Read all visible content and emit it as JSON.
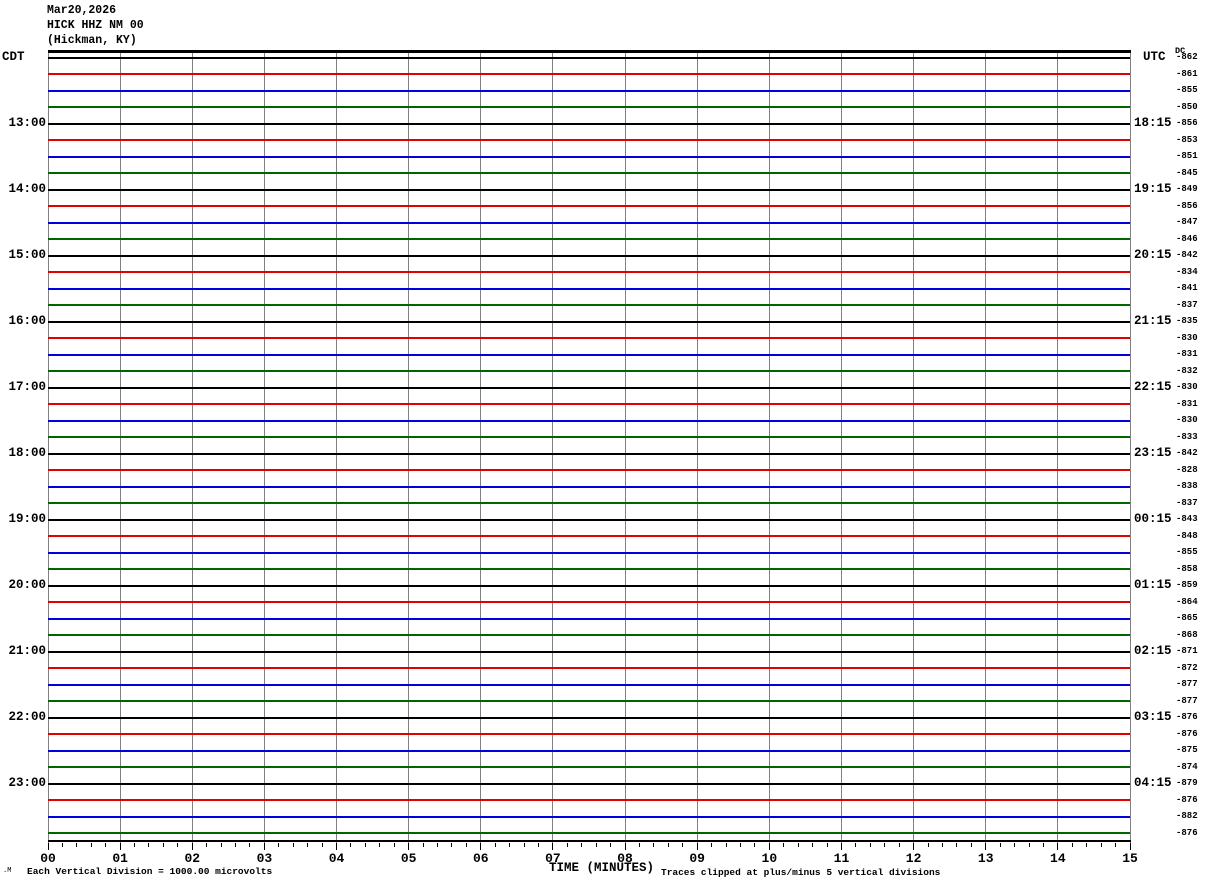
{
  "header": {
    "date": "Mar20,2026",
    "station": "HICK HHZ NM 00",
    "location": "(Hickman, KY)"
  },
  "left_axis": {
    "label": "CDT"
  },
  "right_axis": {
    "label": "UTC",
    "dc_label": "DC"
  },
  "x_axis": {
    "label": "TIME (MINUTES)",
    "ticks": [
      "00",
      "01",
      "02",
      "03",
      "04",
      "05",
      "06",
      "07",
      "08",
      "09",
      "10",
      "11",
      "12",
      "13",
      "14",
      "15"
    ],
    "minor_ticks_per_interval": 4
  },
  "footer": {
    "scale_note": "Each Vertical Division = 1000.00 microvolts",
    "clip_note": "Traces clipped at plus/minus 5 vertical divisions",
    "corner_mark": ".M"
  },
  "colors": {
    "trace_cycle": [
      "#000000",
      "#e00000",
      "#0000dd",
      "#006600"
    ],
    "grid": "#808080",
    "border": "#000000",
    "background": "#ffffff"
  },
  "chart_data": {
    "type": "line",
    "subtype": "helicorder-seismogram",
    "title": "HICK HHZ NM 00 (Hickman, KY) Mar20,2026",
    "xlabel": "TIME (MINUTES)",
    "x_range": [
      0,
      15
    ],
    "row_duration_minutes": 15,
    "rows_per_hour": 4,
    "amplitude_note": "all traces flat (no visible seismic activity)",
    "legend_position": "none",
    "grid": true,
    "rows": [
      {
        "cdt": "",
        "utc": "",
        "dc": "-862",
        "color": "black"
      },
      {
        "cdt": "",
        "utc": "",
        "dc": "-861",
        "color": "red"
      },
      {
        "cdt": "",
        "utc": "",
        "dc": "-855",
        "color": "blue"
      },
      {
        "cdt": "",
        "utc": "",
        "dc": "-850",
        "color": "green"
      },
      {
        "cdt": "13:00",
        "utc": "18:15",
        "dc": "-856",
        "color": "black"
      },
      {
        "cdt": "",
        "utc": "",
        "dc": "-853",
        "color": "red"
      },
      {
        "cdt": "",
        "utc": "",
        "dc": "-851",
        "color": "blue"
      },
      {
        "cdt": "",
        "utc": "",
        "dc": "-845",
        "color": "green"
      },
      {
        "cdt": "14:00",
        "utc": "19:15",
        "dc": "-849",
        "color": "black"
      },
      {
        "cdt": "",
        "utc": "",
        "dc": "-856",
        "color": "red"
      },
      {
        "cdt": "",
        "utc": "",
        "dc": "-847",
        "color": "blue"
      },
      {
        "cdt": "",
        "utc": "",
        "dc": "-846",
        "color": "green"
      },
      {
        "cdt": "15:00",
        "utc": "20:15",
        "dc": "-842",
        "color": "black"
      },
      {
        "cdt": "",
        "utc": "",
        "dc": "-834",
        "color": "red"
      },
      {
        "cdt": "",
        "utc": "",
        "dc": "-841",
        "color": "blue"
      },
      {
        "cdt": "",
        "utc": "",
        "dc": "-837",
        "color": "green"
      },
      {
        "cdt": "16:00",
        "utc": "21:15",
        "dc": "-835",
        "color": "black"
      },
      {
        "cdt": "",
        "utc": "",
        "dc": "-830",
        "color": "red"
      },
      {
        "cdt": "",
        "utc": "",
        "dc": "-831",
        "color": "blue"
      },
      {
        "cdt": "",
        "utc": "",
        "dc": "-832",
        "color": "green"
      },
      {
        "cdt": "17:00",
        "utc": "22:15",
        "dc": "-830",
        "color": "black"
      },
      {
        "cdt": "",
        "utc": "",
        "dc": "-831",
        "color": "red"
      },
      {
        "cdt": "",
        "utc": "",
        "dc": "-830",
        "color": "blue"
      },
      {
        "cdt": "",
        "utc": "",
        "dc": "-833",
        "color": "green"
      },
      {
        "cdt": "18:00",
        "utc": "23:15",
        "dc": "-842",
        "color": "black"
      },
      {
        "cdt": "",
        "utc": "",
        "dc": "-828",
        "color": "red"
      },
      {
        "cdt": "",
        "utc": "",
        "dc": "-838",
        "color": "blue"
      },
      {
        "cdt": "",
        "utc": "",
        "dc": "-837",
        "color": "green"
      },
      {
        "cdt": "19:00",
        "utc": "00:15",
        "dc": "-843",
        "color": "black"
      },
      {
        "cdt": "",
        "utc": "",
        "dc": "-848",
        "color": "red"
      },
      {
        "cdt": "",
        "utc": "",
        "dc": "-855",
        "color": "blue"
      },
      {
        "cdt": "",
        "utc": "",
        "dc": "-858",
        "color": "green"
      },
      {
        "cdt": "20:00",
        "utc": "01:15",
        "dc": "-859",
        "color": "black"
      },
      {
        "cdt": "",
        "utc": "",
        "dc": "-864",
        "color": "red"
      },
      {
        "cdt": "",
        "utc": "",
        "dc": "-865",
        "color": "blue"
      },
      {
        "cdt": "",
        "utc": "",
        "dc": "-868",
        "color": "green"
      },
      {
        "cdt": "21:00",
        "utc": "02:15",
        "dc": "-871",
        "color": "black"
      },
      {
        "cdt": "",
        "utc": "",
        "dc": "-872",
        "color": "red"
      },
      {
        "cdt": "",
        "utc": "",
        "dc": "-877",
        "color": "blue"
      },
      {
        "cdt": "",
        "utc": "",
        "dc": "-877",
        "color": "green"
      },
      {
        "cdt": "22:00",
        "utc": "03:15",
        "dc": "-876",
        "color": "black"
      },
      {
        "cdt": "",
        "utc": "",
        "dc": "-876",
        "color": "red"
      },
      {
        "cdt": "",
        "utc": "",
        "dc": "-875",
        "color": "blue"
      },
      {
        "cdt": "",
        "utc": "",
        "dc": "-874",
        "color": "green"
      },
      {
        "cdt": "23:00",
        "utc": "04:15",
        "dc": "-879",
        "color": "black"
      },
      {
        "cdt": "",
        "utc": "",
        "dc": "-876",
        "color": "red"
      },
      {
        "cdt": "",
        "utc": "",
        "dc": "-882",
        "color": "blue"
      },
      {
        "cdt": "",
        "utc": "",
        "dc": "-876",
        "color": "green"
      }
    ]
  }
}
